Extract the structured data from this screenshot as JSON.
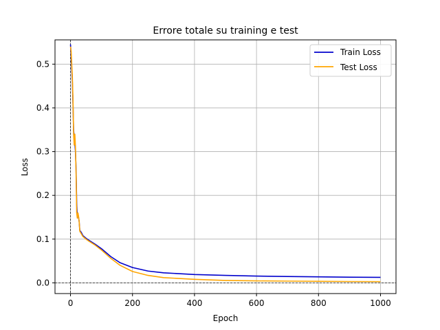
{
  "chart_data": {
    "type": "line",
    "title": "Errore totale su training e test",
    "xlabel": "Epoch",
    "ylabel": "Loss",
    "xlim": [
      -50,
      1050
    ],
    "ylim": [
      -0.0245,
      0.5555
    ],
    "xticks": [
      0,
      200,
      400,
      600,
      800,
      1000
    ],
    "xtick_labels": [
      "0",
      "200",
      "400",
      "600",
      "800",
      "1000"
    ],
    "yticks": [
      0.0,
      0.1,
      0.2,
      0.3,
      0.4,
      0.5
    ],
    "ytick_labels": [
      "0.0",
      "0.1",
      "0.2",
      "0.3",
      "0.4",
      "0.5"
    ],
    "grid": true,
    "legend_position": "upper right",
    "reference_lines": {
      "vertical_x": 0,
      "horizontal_y": 0
    },
    "series": [
      {
        "name": "Train Loss",
        "color": "#0000cc",
        "x": [
          0,
          2,
          4,
          6,
          8,
          10,
          12,
          14,
          16,
          18,
          20,
          22,
          24,
          26,
          28,
          30,
          35,
          40,
          50,
          60,
          80,
          100,
          130,
          160,
          200,
          250,
          300,
          400,
          500,
          600,
          700,
          800,
          900,
          1000
        ],
        "y": [
          0.545,
          0.52,
          0.49,
          0.46,
          0.41,
          0.35,
          0.33,
          0.32,
          0.3,
          0.26,
          0.18,
          0.15,
          0.158,
          0.15,
          0.14,
          0.12,
          0.115,
          0.108,
          0.102,
          0.097,
          0.088,
          0.078,
          0.06,
          0.046,
          0.035,
          0.027,
          0.023,
          0.019,
          0.017,
          0.0155,
          0.0145,
          0.0137,
          0.013,
          0.0125
        ]
      },
      {
        "name": "Test Loss",
        "color": "#ffa500",
        "x": [
          0,
          2,
          4,
          6,
          8,
          10,
          12,
          14,
          16,
          18,
          20,
          22,
          24,
          26,
          28,
          30,
          35,
          40,
          50,
          60,
          80,
          100,
          130,
          160,
          200,
          250,
          300,
          400,
          500,
          600,
          700,
          800,
          900,
          1000
        ],
        "y": [
          0.54,
          0.53,
          0.5,
          0.47,
          0.42,
          0.34,
          0.315,
          0.34,
          0.31,
          0.25,
          0.16,
          0.148,
          0.16,
          0.152,
          0.14,
          0.118,
          0.112,
          0.106,
          0.1,
          0.095,
          0.086,
          0.075,
          0.056,
          0.04,
          0.026,
          0.017,
          0.012,
          0.008,
          0.0055,
          0.0045,
          0.004,
          0.0035,
          0.003,
          0.0028
        ]
      }
    ]
  }
}
